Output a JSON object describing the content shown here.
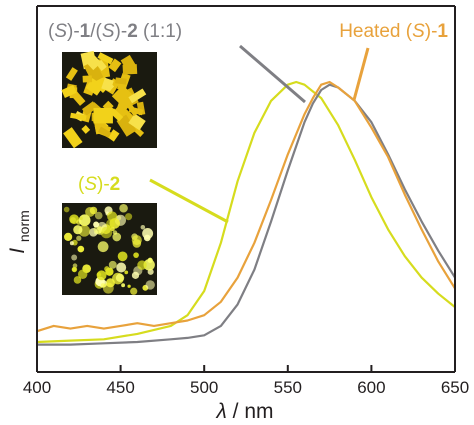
{
  "chart_data": {
    "type": "line",
    "xlabel": {
      "symbol": "λ",
      "unit": "/ nm"
    },
    "ylabel": {
      "symbol": "I",
      "subscript": "norm"
    },
    "xlim": [
      400,
      650
    ],
    "xticks": [
      400,
      450,
      500,
      550,
      600,
      650
    ],
    "y_ticks_shown": false,
    "grid": false,
    "colors": {
      "mix": "#7f7f84",
      "heated": "#e8a23c",
      "s2": "#d6dc1e",
      "axis": "#231f20"
    },
    "series": [
      {
        "id": "mix",
        "label_parts": [
          {
            "text": "(",
            "style": "normal"
          },
          {
            "text": "S",
            "style": "italic"
          },
          {
            "text": ")-",
            "style": "normal"
          },
          {
            "text": "1",
            "style": "bold"
          },
          {
            "text": "/(",
            "style": "normal"
          },
          {
            "text": "S",
            "style": "italic"
          },
          {
            "text": ")-",
            "style": "normal"
          },
          {
            "text": "2",
            "style": "bold"
          },
          {
            "text": " (1:1)",
            "style": "normal"
          }
        ],
        "color": "#7f7f84",
        "points": [
          [
            400,
            0.02
          ],
          [
            420,
            0.02
          ],
          [
            440,
            0.025
          ],
          [
            460,
            0.03
          ],
          [
            480,
            0.04
          ],
          [
            490,
            0.045
          ],
          [
            500,
            0.055
          ],
          [
            510,
            0.09
          ],
          [
            520,
            0.17
          ],
          [
            530,
            0.3
          ],
          [
            540,
            0.48
          ],
          [
            550,
            0.67
          ],
          [
            560,
            0.85
          ],
          [
            565,
            0.92
          ],
          [
            570,
            0.97
          ],
          [
            575,
            0.99
          ],
          [
            580,
            0.98
          ],
          [
            590,
            0.93
          ],
          [
            600,
            0.85
          ],
          [
            610,
            0.73
          ],
          [
            620,
            0.6
          ],
          [
            630,
            0.48
          ],
          [
            640,
            0.37
          ],
          [
            650,
            0.27
          ]
        ]
      },
      {
        "id": "heated",
        "label_parts": [
          {
            "text": "Heated (",
            "style": "normal"
          },
          {
            "text": "S",
            "style": "italic"
          },
          {
            "text": ")-",
            "style": "normal"
          },
          {
            "text": "1",
            "style": "bold"
          }
        ],
        "color": "#e8a23c",
        "points": [
          [
            400,
            0.07
          ],
          [
            410,
            0.09
          ],
          [
            420,
            0.08
          ],
          [
            430,
            0.09
          ],
          [
            440,
            0.08
          ],
          [
            450,
            0.09
          ],
          [
            460,
            0.1
          ],
          [
            470,
            0.09
          ],
          [
            480,
            0.1
          ],
          [
            490,
            0.11
          ],
          [
            500,
            0.13
          ],
          [
            510,
            0.18
          ],
          [
            520,
            0.27
          ],
          [
            530,
            0.4
          ],
          [
            540,
            0.56
          ],
          [
            550,
            0.73
          ],
          [
            560,
            0.88
          ],
          [
            565,
            0.94
          ],
          [
            570,
            0.99
          ],
          [
            575,
            1.0
          ],
          [
            580,
            0.98
          ],
          [
            590,
            0.93
          ],
          [
            600,
            0.83
          ],
          [
            610,
            0.72
          ],
          [
            620,
            0.58
          ],
          [
            630,
            0.45
          ],
          [
            640,
            0.33
          ],
          [
            650,
            0.23
          ]
        ]
      },
      {
        "id": "s2",
        "label_parts": [
          {
            "text": "(",
            "style": "normal"
          },
          {
            "text": "S",
            "style": "italic"
          },
          {
            "text": ")-",
            "style": "normal"
          },
          {
            "text": "2",
            "style": "bold"
          }
        ],
        "color": "#d6dc1e",
        "points": [
          [
            400,
            0.03
          ],
          [
            420,
            0.035
          ],
          [
            440,
            0.04
          ],
          [
            460,
            0.06
          ],
          [
            480,
            0.09
          ],
          [
            490,
            0.13
          ],
          [
            500,
            0.22
          ],
          [
            510,
            0.4
          ],
          [
            520,
            0.63
          ],
          [
            530,
            0.81
          ],
          [
            540,
            0.93
          ],
          [
            550,
            0.99
          ],
          [
            555,
            1.0
          ],
          [
            560,
            0.99
          ],
          [
            570,
            0.94
          ],
          [
            580,
            0.84
          ],
          [
            590,
            0.71
          ],
          [
            600,
            0.57
          ],
          [
            610,
            0.45
          ],
          [
            620,
            0.35
          ],
          [
            630,
            0.27
          ],
          [
            640,
            0.21
          ],
          [
            650,
            0.16
          ]
        ]
      }
    ]
  }
}
